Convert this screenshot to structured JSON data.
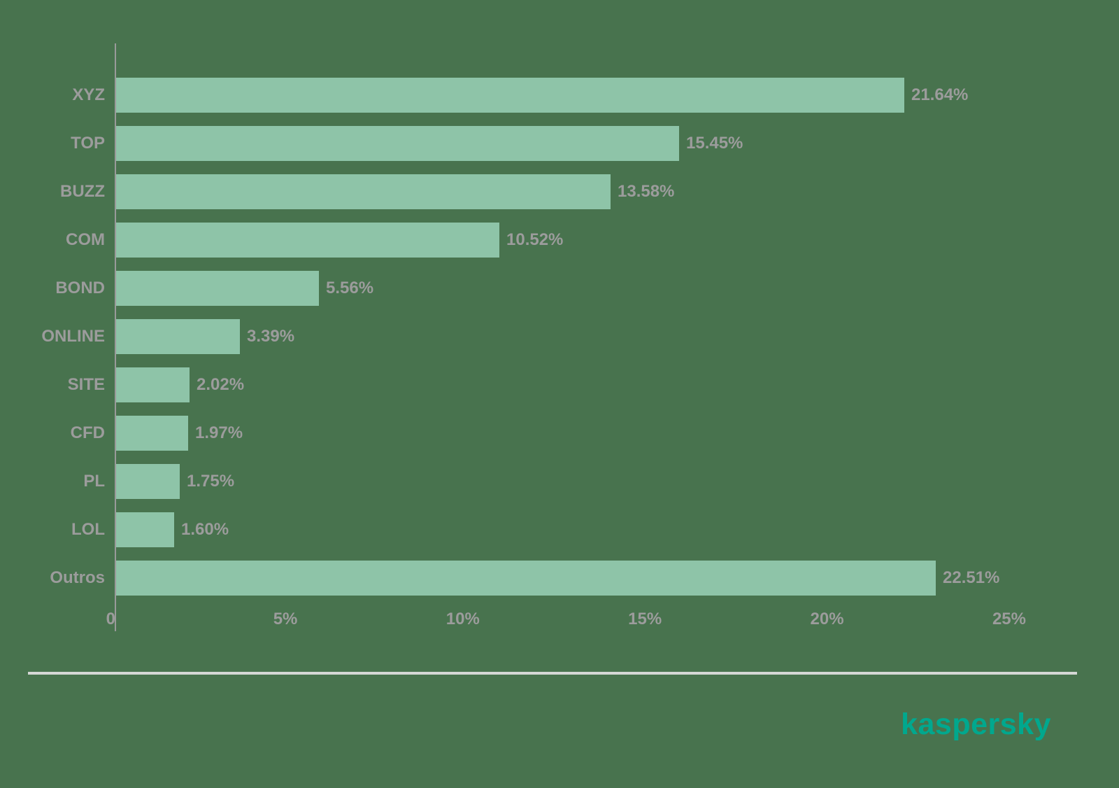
{
  "chart_data": {
    "type": "bar",
    "orientation": "horizontal",
    "title": "",
    "categories": [
      "XYZ",
      "TOP",
      "BUZZ",
      "COM",
      "BOND",
      "ONLINE",
      "SITE",
      "CFD",
      "PL",
      "LOL",
      "Outros"
    ],
    "values": [
      21.64,
      15.45,
      13.58,
      10.52,
      5.56,
      3.39,
      2.02,
      1.97,
      1.75,
      1.6,
      22.51
    ],
    "value_labels": [
      "21.64%",
      "15.45%",
      "13.58%",
      "10.52%",
      "5.56%",
      "3.39%",
      "2.02%",
      "1.97%",
      "1.75%",
      "1.60%",
      "22.51%"
    ],
    "x_axis": {
      "min": 0,
      "max": 25,
      "ticks": [
        0,
        5,
        10,
        15,
        20,
        25
      ],
      "tick_labels": [
        "0",
        "5%",
        "10%",
        "15%",
        "20%",
        "25%"
      ]
    },
    "grid": false,
    "legend": null,
    "colors": {
      "background": "#48734E",
      "bar": "#8EC4A8",
      "label": "#9C9C9C",
      "axis": "#9A9A9A"
    }
  },
  "footer": {
    "logo_text": "kaspersky",
    "logo_color": "#00A88E"
  }
}
